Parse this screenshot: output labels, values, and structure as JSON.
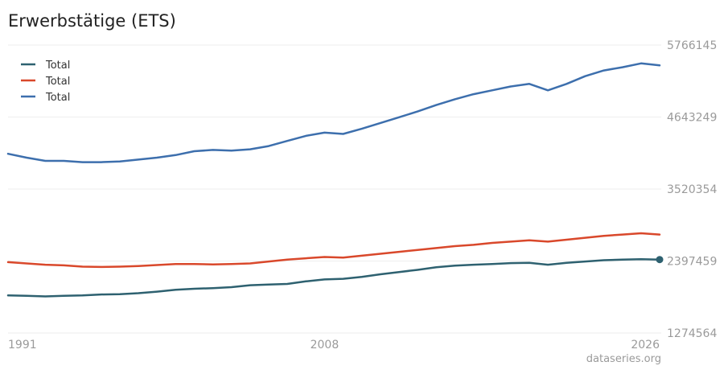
{
  "title": "Erwerbstätige (ETS)",
  "credit": "dataseries.org",
  "colors": {
    "grid": "#eeeeee",
    "tick_text": "#9a9a9a"
  },
  "chart_data": {
    "type": "line",
    "title": "Erwerbstätige (ETS)",
    "xlabel": "",
    "ylabel": "",
    "x_range": [
      1991.0,
      2026.0
    ],
    "ylim": [
      1274564,
      5766145
    ],
    "x_ticks": [
      "1991",
      "2008",
      "2026"
    ],
    "y_ticks": [
      "5766145",
      "4643249",
      "3520354",
      "2397459",
      "1274564"
    ],
    "y_tick_values": [
      5766145,
      4643249,
      3520354,
      2397459,
      1274564
    ],
    "grid": true,
    "legend_position": "top-left",
    "series": [
      {
        "name": "Total",
        "color": "#2e6170",
        "end_marker": true,
        "points": [
          [
            1991.0,
            1860000
          ],
          [
            1992.0,
            1855000
          ],
          [
            1993.0,
            1845000
          ],
          [
            1994.0,
            1855000
          ],
          [
            1995.0,
            1860000
          ],
          [
            1996.0,
            1875000
          ],
          [
            1997.0,
            1880000
          ],
          [
            1998.0,
            1895000
          ],
          [
            1999.0,
            1920000
          ],
          [
            2000.0,
            1950000
          ],
          [
            2001.0,
            1965000
          ],
          [
            2002.0,
            1975000
          ],
          [
            2003.0,
            1990000
          ],
          [
            2004.0,
            2020000
          ],
          [
            2005.0,
            2030000
          ],
          [
            2006.0,
            2040000
          ],
          [
            2007.0,
            2080000
          ],
          [
            2008.0,
            2110000
          ],
          [
            2009.0,
            2120000
          ],
          [
            2010.0,
            2150000
          ],
          [
            2011.0,
            2190000
          ],
          [
            2012.0,
            2225000
          ],
          [
            2013.0,
            2260000
          ],
          [
            2014.0,
            2300000
          ],
          [
            2015.0,
            2325000
          ],
          [
            2016.0,
            2340000
          ],
          [
            2017.0,
            2350000
          ],
          [
            2018.0,
            2365000
          ],
          [
            2019.0,
            2370000
          ],
          [
            2020.0,
            2340000
          ],
          [
            2021.0,
            2370000
          ],
          [
            2022.0,
            2390000
          ],
          [
            2023.0,
            2410000
          ],
          [
            2024.0,
            2420000
          ],
          [
            2025.0,
            2425000
          ],
          [
            2026.0,
            2420000
          ]
        ]
      },
      {
        "name": "Total",
        "color": "#d9482b",
        "end_marker": false,
        "points": [
          [
            1991.0,
            2380000
          ],
          [
            1992.0,
            2360000
          ],
          [
            1993.0,
            2340000
          ],
          [
            1994.0,
            2330000
          ],
          [
            1995.0,
            2310000
          ],
          [
            1996.0,
            2305000
          ],
          [
            1997.0,
            2310000
          ],
          [
            1998.0,
            2320000
          ],
          [
            1999.0,
            2335000
          ],
          [
            2000.0,
            2350000
          ],
          [
            2001.0,
            2350000
          ],
          [
            2002.0,
            2345000
          ],
          [
            2003.0,
            2350000
          ],
          [
            2004.0,
            2360000
          ],
          [
            2005.0,
            2390000
          ],
          [
            2006.0,
            2420000
          ],
          [
            2007.0,
            2440000
          ],
          [
            2008.0,
            2460000
          ],
          [
            2009.0,
            2450000
          ],
          [
            2010.0,
            2480000
          ],
          [
            2011.0,
            2510000
          ],
          [
            2012.0,
            2540000
          ],
          [
            2013.0,
            2570000
          ],
          [
            2014.0,
            2600000
          ],
          [
            2015.0,
            2630000
          ],
          [
            2016.0,
            2650000
          ],
          [
            2017.0,
            2680000
          ],
          [
            2018.0,
            2700000
          ],
          [
            2019.0,
            2720000
          ],
          [
            2020.0,
            2700000
          ],
          [
            2021.0,
            2730000
          ],
          [
            2022.0,
            2760000
          ],
          [
            2023.0,
            2790000
          ],
          [
            2024.0,
            2810000
          ],
          [
            2025.0,
            2830000
          ],
          [
            2026.0,
            2810000
          ]
        ]
      },
      {
        "name": "Total",
        "color": "#3d6fad",
        "end_marker": false,
        "points": [
          [
            1991.0,
            4070000
          ],
          [
            1992.0,
            4010000
          ],
          [
            1993.0,
            3960000
          ],
          [
            1994.0,
            3960000
          ],
          [
            1995.0,
            3940000
          ],
          [
            1996.0,
            3940000
          ],
          [
            1997.0,
            3950000
          ],
          [
            1998.0,
            3980000
          ],
          [
            1999.0,
            4010000
          ],
          [
            2000.0,
            4050000
          ],
          [
            2001.0,
            4110000
          ],
          [
            2002.0,
            4130000
          ],
          [
            2003.0,
            4120000
          ],
          [
            2004.0,
            4140000
          ],
          [
            2005.0,
            4190000
          ],
          [
            2006.0,
            4270000
          ],
          [
            2007.0,
            4350000
          ],
          [
            2008.0,
            4400000
          ],
          [
            2009.0,
            4380000
          ],
          [
            2010.0,
            4460000
          ],
          [
            2011.0,
            4550000
          ],
          [
            2012.0,
            4640000
          ],
          [
            2013.0,
            4730000
          ],
          [
            2014.0,
            4830000
          ],
          [
            2015.0,
            4920000
          ],
          [
            2016.0,
            5000000
          ],
          [
            2017.0,
            5060000
          ],
          [
            2018.0,
            5120000
          ],
          [
            2019.0,
            5160000
          ],
          [
            2020.0,
            5060000
          ],
          [
            2021.0,
            5160000
          ],
          [
            2022.0,
            5280000
          ],
          [
            2023.0,
            5370000
          ],
          [
            2024.0,
            5420000
          ],
          [
            2025.0,
            5480000
          ],
          [
            2026.0,
            5450000
          ]
        ]
      }
    ]
  }
}
